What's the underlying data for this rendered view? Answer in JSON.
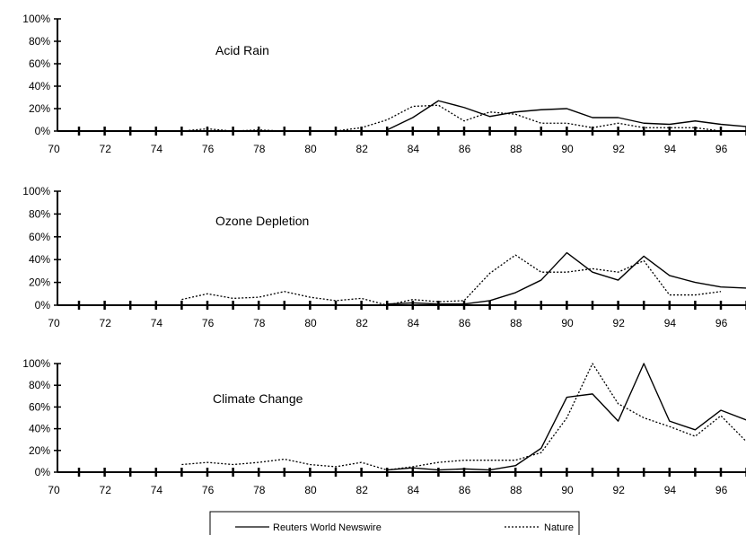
{
  "chart_data": [
    {
      "type": "line",
      "title": "Acid Rain",
      "xlabel": "",
      "ylabel": "",
      "x_tick_labels": [
        "70",
        "72",
        "74",
        "76",
        "78",
        "80",
        "82",
        "84",
        "86",
        "88",
        "90",
        "92",
        "94",
        "96"
      ],
      "y_tick_labels": [
        "0%",
        "20%",
        "40%",
        "60%",
        "80%",
        "100%"
      ],
      "xlim": [
        70,
        97
      ],
      "ylim": [
        0,
        100
      ],
      "series": [
        {
          "name": "Reuters World Newswire",
          "style": "solid",
          "x": [
            82,
            83,
            84,
            85,
            86,
            87,
            88,
            89,
            90,
            91,
            92,
            93,
            94,
            95,
            96
          ],
          "y": [
            1,
            12,
            27,
            21,
            13,
            17,
            19,
            20,
            12,
            12,
            7,
            6,
            9,
            6,
            4
          ]
        },
        {
          "name": "Nature",
          "style": "dotted",
          "x": [
            74,
            75,
            76,
            77,
            78,
            79,
            80,
            81,
            82,
            83,
            84,
            85,
            86,
            87,
            88,
            89,
            90,
            91,
            92,
            93,
            94,
            95
          ],
          "y": [
            0,
            2,
            0,
            1,
            0,
            0,
            0,
            3,
            10,
            22,
            23,
            9,
            17,
            15,
            7,
            7,
            3,
            7,
            3,
            3,
            3,
            0
          ]
        }
      ]
    },
    {
      "type": "line",
      "title": "Ozone Depletion",
      "xlabel": "",
      "ylabel": "",
      "x_tick_labels": [
        "70",
        "72",
        "74",
        "76",
        "78",
        "80",
        "82",
        "84",
        "86",
        "88",
        "90",
        "92",
        "94",
        "96"
      ],
      "y_tick_labels": [
        "0%",
        "20%",
        "40%",
        "60%",
        "80%",
        "100%"
      ],
      "xlim": [
        70,
        97
      ],
      "ylim": [
        0,
        100
      ],
      "series": [
        {
          "name": "Reuters World Newswire",
          "style": "solid",
          "x": [
            82,
            83,
            84,
            85,
            86,
            87,
            88,
            89,
            90,
            91,
            92,
            93,
            94,
            95,
            96
          ],
          "y": [
            1,
            2,
            1,
            1,
            4,
            11,
            22,
            46,
            29,
            22,
            43,
            26,
            20,
            16,
            15
          ]
        },
        {
          "name": "Nature",
          "style": "dotted",
          "x": [
            74,
            75,
            76,
            77,
            78,
            79,
            80,
            81,
            82,
            83,
            84,
            85,
            86,
            87,
            88,
            89,
            90,
            91,
            92,
            93,
            94,
            95
          ],
          "y": [
            5,
            10,
            6,
            7,
            12,
            7,
            4,
            6,
            0,
            5,
            3,
            4,
            28,
            44,
            29,
            29,
            32,
            29,
            39,
            9,
            9,
            12
          ]
        }
      ]
    },
    {
      "type": "line",
      "title": "Climate Change",
      "xlabel": "",
      "ylabel": "",
      "x_tick_labels": [
        "70",
        "72",
        "74",
        "76",
        "78",
        "80",
        "82",
        "84",
        "86",
        "88",
        "90",
        "92",
        "94",
        "96"
      ],
      "y_tick_labels": [
        "0%",
        "20%",
        "40%",
        "60%",
        "80%",
        "100%"
      ],
      "xlim": [
        70,
        97
      ],
      "ylim": [
        0,
        100
      ],
      "series": [
        {
          "name": "Reuters World Newswire",
          "style": "solid",
          "x": [
            82,
            83,
            84,
            85,
            86,
            87,
            88,
            89,
            90,
            91,
            92,
            93,
            94,
            95,
            96
          ],
          "y": [
            2,
            4,
            2,
            3,
            2,
            6,
            22,
            69,
            72,
            47,
            100,
            47,
            39,
            57,
            48
          ]
        },
        {
          "name": "Nature",
          "style": "dotted",
          "x": [
            74,
            75,
            76,
            77,
            78,
            79,
            80,
            81,
            82,
            83,
            84,
            85,
            86,
            87,
            88,
            89,
            90,
            91,
            92,
            93,
            94,
            95,
            96,
            97
          ],
          "y": [
            7,
            9,
            7,
            9,
            12,
            7,
            5,
            9,
            2,
            5,
            9,
            11,
            11,
            11,
            18,
            50,
            100,
            63,
            50,
            42,
            33,
            52,
            28,
            33
          ]
        }
      ]
    }
  ],
  "legend": {
    "position": "bottom",
    "entries": [
      {
        "label": "Reuters World Newswire",
        "style": "solid"
      },
      {
        "label": "Nature",
        "style": "dotted"
      }
    ]
  }
}
